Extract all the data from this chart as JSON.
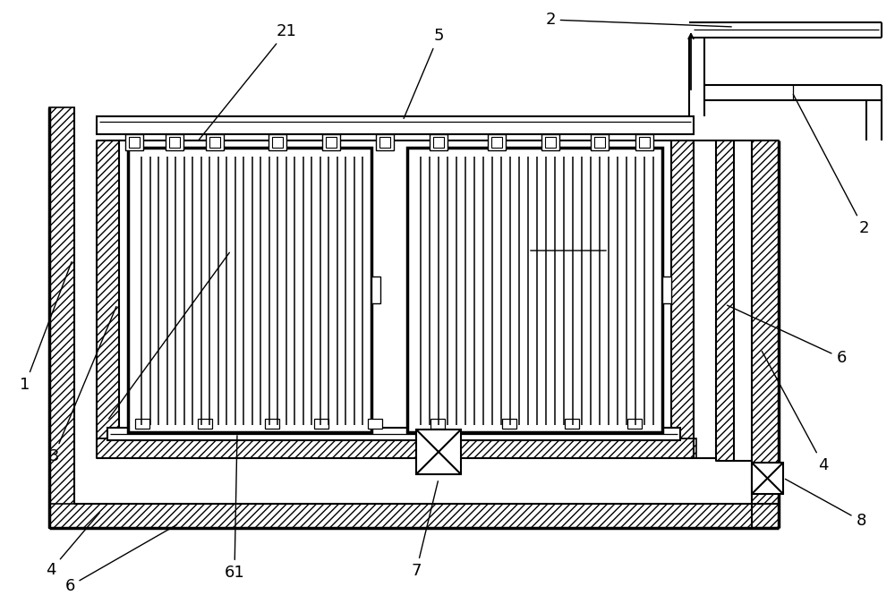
{
  "fig_width": 10.0,
  "fig_height": 6.75,
  "dpi": 100,
  "bg_color": "#ffffff",
  "line_color": "#000000",
  "label_fontsize": 13,
  "lw": 1.5,
  "lw_thick": 2.5,
  "lw_thin": 0.9
}
